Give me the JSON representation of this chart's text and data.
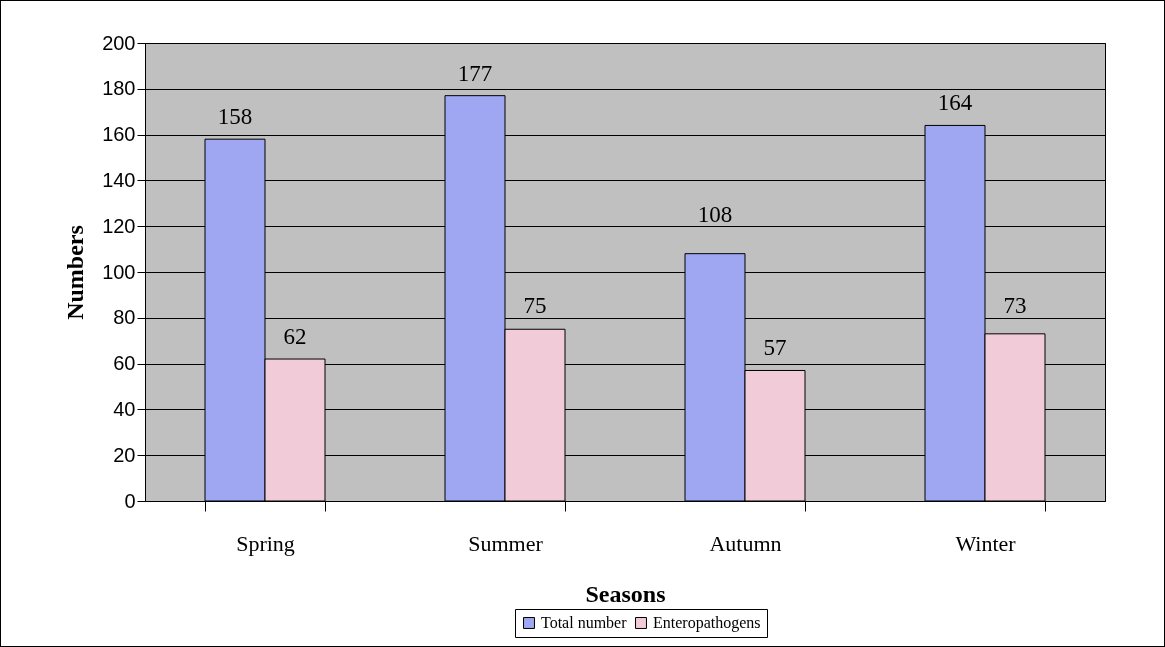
{
  "chart_data": {
    "type": "bar",
    "xlabel": "Seasons",
    "ylabel": "Numbers",
    "categories": [
      "Spring",
      "Summer",
      "Autumn",
      "Winter"
    ],
    "series": [
      {
        "name": "Total number",
        "color": "#9fa6f2",
        "values": [
          158,
          177,
          108,
          164
        ]
      },
      {
        "name": "Enteropathogens",
        "color": "#f2cbd8",
        "values": [
          62,
          75,
          57,
          73
        ]
      }
    ],
    "ylim": [
      0,
      200
    ],
    "yticks": [
      0,
      20,
      40,
      60,
      80,
      100,
      120,
      140,
      160,
      180,
      200
    ],
    "grid": "y",
    "legend": "bottom",
    "data_labels": true
  }
}
